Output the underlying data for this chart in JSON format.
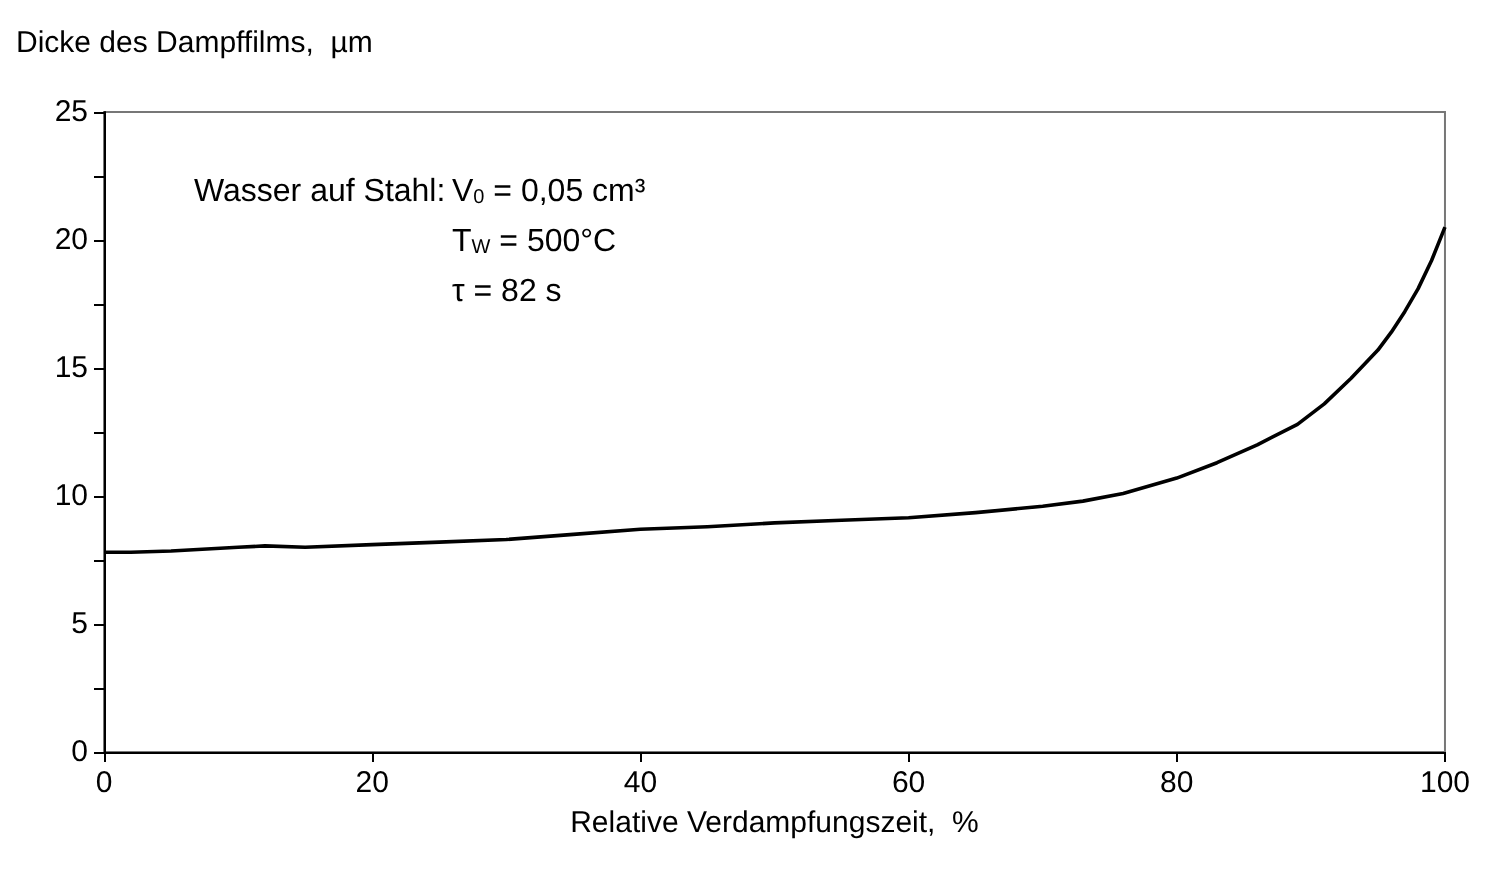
{
  "chart_data": {
    "type": "line",
    "xlabel": "Relative Verdampfungszeit,  %",
    "ylabel": "Dicke des Dampffilms,  µm",
    "x": [
      0,
      2,
      5,
      10,
      12,
      15,
      20,
      25,
      30,
      35,
      40,
      45,
      50,
      55,
      60,
      65,
      70,
      73,
      76,
      80,
      83,
      86,
      89,
      91,
      93,
      95,
      96,
      97,
      98,
      99,
      100
    ],
    "series": [
      {
        "color": "#000000",
        "values": [
          7.8,
          7.8,
          7.85,
          8.0,
          8.05,
          8.0,
          8.1,
          8.2,
          8.3,
          8.5,
          8.7,
          8.8,
          8.95,
          9.05,
          9.15,
          9.35,
          9.6,
          9.8,
          10.1,
          10.7,
          11.3,
          12.0,
          12.8,
          13.6,
          14.6,
          15.7,
          16.4,
          17.2,
          18.1,
          19.2,
          20.5
        ]
      }
    ],
    "xlim": [
      0,
      100
    ],
    "xticks": [
      0,
      20,
      40,
      60,
      80,
      100
    ],
    "ylim": [
      0,
      25
    ],
    "yticks": [
      0,
      {
        "value": 2.5,
        "label": null
      },
      5,
      {
        "value": 7.5,
        "label": null
      },
      10,
      {
        "value": 12.5,
        "label": null
      },
      15,
      {
        "value": 17.5,
        "label": null
      },
      20,
      {
        "value": 22.5,
        "label": null
      },
      25
    ],
    "grid": false,
    "marker": "none",
    "line_style": "solid",
    "annotations": [
      "Wasser auf Stahl:",
      "V$_{0}$ = 0,05 cm³",
      "T$_{W}$ = 500°C",
      "τ = 82 s"
    ]
  }
}
